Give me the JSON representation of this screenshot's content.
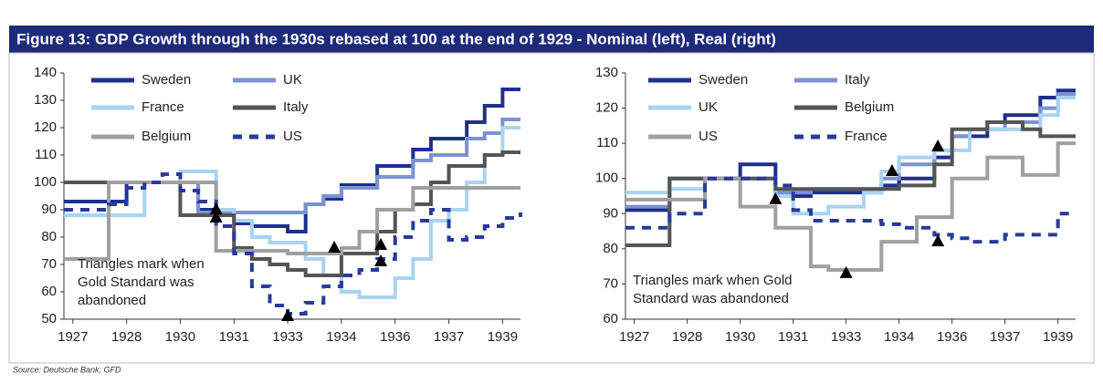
{
  "title": "Figure 13: GDP Growth through the 1930s rebased at 100 at the end of 1929 - Nominal (left), Real (right)",
  "source": "Source: Deutsche Bank; GFD",
  "chart_data": [
    {
      "type": "line",
      "x": [
        1926.75,
        1927.5,
        1928,
        1928.5,
        1929,
        1929.5,
        1930,
        1930.5,
        1931,
        1931.5,
        1932,
        1932.5,
        1933,
        1933.5,
        1934,
        1934.5,
        1935,
        1935.5,
        1936,
        1936.5,
        1937,
        1937.5,
        1938,
        1938.5,
        1939,
        1939.5
      ],
      "xlim": [
        1926.75,
        1939.5
      ],
      "xticks": [
        1927,
        {
          "value": 1928.5,
          "label": "1928"
        },
        1930,
        {
          "value": 1931.5,
          "label": "1931"
        },
        1933,
        {
          "value": 1934.5,
          "label": "1934"
        },
        1936,
        {
          "value": 1937.5,
          "label": "1937"
        },
        1939
      ],
      "ylim": [
        50,
        140
      ],
      "yticks": [
        50,
        60,
        70,
        80,
        90,
        100,
        110,
        120,
        130,
        140
      ],
      "series": [
        {
          "name": "Sweden",
          "color": "#1f2f8f",
          "values": [
            93,
            93,
            93,
            100,
            100,
            100,
            100,
            90,
            88,
            85,
            84,
            84,
            82,
            92,
            94,
            99,
            99,
            106,
            106,
            112,
            116,
            116,
            122,
            128,
            134,
            134
          ]
        },
        {
          "name": "UK",
          "color": "#7b93d1",
          "values": [
            100,
            100,
            100,
            100,
            100,
            100,
            100,
            89,
            89,
            89,
            89,
            89,
            89,
            92,
            95,
            98,
            98,
            102,
            102,
            108,
            110,
            110,
            116,
            118,
            123,
            123
          ]
        },
        {
          "name": "France",
          "color": "#a7d4f0",
          "values": [
            88,
            88,
            88,
            88,
            100,
            100,
            104,
            104,
            90,
            86,
            80,
            78,
            78,
            72,
            66,
            60,
            58,
            58,
            65,
            72,
            86,
            90,
            100,
            110,
            120,
            120
          ]
        },
        {
          "name": "Italy",
          "color": "#555555",
          "values": [
            100,
            100,
            100,
            100,
            100,
            100,
            88,
            88,
            88,
            76,
            72,
            70,
            68,
            66,
            66,
            74,
            74,
            82,
            90,
            92,
            100,
            106,
            106,
            110,
            111,
            111
          ]
        },
        {
          "name": "Belgium",
          "color": "#a0a0a0",
          "values": [
            72,
            72,
            100,
            100,
            100,
            100,
            100,
            100,
            75,
            75,
            75,
            75,
            74,
            74,
            74,
            76,
            82,
            90,
            90,
            98,
            98,
            98,
            98,
            98,
            98,
            98
          ]
        },
        {
          "name": "US",
          "color": "#2a3a9a",
          "dashed": true,
          "values": [
            90,
            90,
            92,
            98,
            100,
            103,
            97,
            93,
            84,
            74,
            62,
            55,
            52,
            56,
            62,
            66,
            68,
            72,
            80,
            86,
            90,
            79,
            80,
            84,
            87,
            89
          ]
        }
      ],
      "annotation": [
        "Triangles mark when",
        "Gold Standard was",
        "abandoned"
      ],
      "markers": {
        "x": [
          1931,
          1931,
          1933,
          1934.3,
          1935.6,
          1935.6
        ],
        "y": [
          90,
          87,
          51,
          76,
          77,
          71
        ]
      }
    },
    {
      "type": "line",
      "x": [
        1926.75,
        1927.5,
        1928,
        1928.5,
        1929,
        1929.5,
        1930,
        1930.5,
        1931,
        1931.5,
        1932,
        1932.5,
        1933,
        1933.5,
        1934,
        1934.5,
        1935,
        1935.5,
        1936,
        1936.5,
        1937,
        1937.5,
        1938,
        1938.5,
        1939,
        1939.5
      ],
      "xlim": [
        1926.75,
        1939.5
      ],
      "xticks": [
        1927,
        {
          "value": 1928.5,
          "label": "1928"
        },
        1930,
        {
          "value": 1931.5,
          "label": "1931"
        },
        1933,
        {
          "value": 1934.5,
          "label": "1934"
        },
        1936,
        {
          "value": 1937.5,
          "label": "1937"
        },
        1939
      ],
      "ylim": [
        60,
        130
      ],
      "yticks": [
        60,
        70,
        80,
        90,
        100,
        110,
        120,
        130
      ],
      "series": [
        {
          "name": "Sweden",
          "color": "#1f2f8f",
          "values": [
            91,
            91,
            100,
            100,
            100,
            100,
            104,
            104,
            95,
            95,
            96,
            96,
            96,
            96,
            98,
            100,
            100,
            106,
            112,
            112,
            116,
            118,
            118,
            123,
            125,
            125
          ]
        },
        {
          "name": "Italy",
          "color": "#7b93d1",
          "values": [
            92,
            92,
            100,
            100,
            100,
            100,
            100,
            100,
            96,
            96,
            97,
            97,
            97,
            97,
            100,
            104,
            104,
            108,
            112,
            114,
            114,
            116,
            116,
            120,
            124,
            124
          ]
        },
        {
          "name": "UK",
          "color": "#a7d4f0",
          "values": [
            96,
            96,
            97,
            97,
            100,
            100,
            100,
            100,
            95,
            90,
            90,
            92,
            92,
            96,
            102,
            106,
            106,
            108,
            108,
            114,
            114,
            114,
            114,
            118,
            123,
            123
          ]
        },
        {
          "name": "Belgium",
          "color": "#555555",
          "values": [
            81,
            81,
            100,
            100,
            100,
            100,
            100,
            100,
            97,
            97,
            97,
            97,
            97,
            97,
            97,
            98,
            98,
            104,
            114,
            114,
            116,
            116,
            114,
            112,
            112,
            112
          ]
        },
        {
          "name": "US",
          "color": "#a0a0a0",
          "values": [
            94,
            94,
            94,
            94,
            100,
            100,
            92,
            92,
            86,
            86,
            75,
            74,
            74,
            74,
            82,
            82,
            89,
            89,
            100,
            100,
            106,
            106,
            101,
            101,
            110,
            110
          ]
        },
        {
          "name": "France",
          "color": "#2a3a9a",
          "dashed": true,
          "values": [
            86,
            86,
            90,
            90,
            100,
            100,
            100,
            100,
            98,
            91,
            88,
            88,
            88,
            88,
            87,
            86,
            86,
            84,
            83,
            82,
            82,
            84,
            84,
            84,
            90,
            90
          ]
        }
      ],
      "annotation": [
        "Triangles mark when Gold",
        "Standard was abandoned"
      ],
      "markers": {
        "x": [
          1931,
          1933,
          1934.3,
          1935.6,
          1935.6
        ],
        "y": [
          94,
          73,
          102,
          109,
          82
        ]
      }
    }
  ]
}
